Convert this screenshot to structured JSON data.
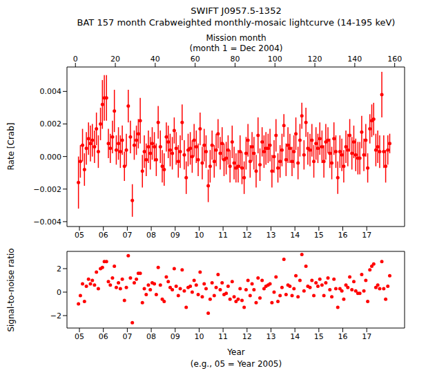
{
  "chart_data": [
    {
      "type": "scatter",
      "title": "SWIFT J0957.5-1352",
      "subtitle": "BAT 157 month Crabweighted monthly-mosaic lightcurve (14-195 keV)",
      "x2_label": "Mission month",
      "x2_sublabel": "(month 1 = Dec 2004)",
      "y_label": "Rate [Crab]",
      "color": "#ff0000",
      "marker": "o",
      "grid": false,
      "xlim": [
        2004.48,
        2018.58
      ],
      "xticks": [
        {
          "value": 2005,
          "label": "05"
        },
        {
          "value": 2006,
          "label": "06"
        },
        {
          "value": 2007,
          "label": "07"
        },
        {
          "value": 2008,
          "label": "08"
        },
        {
          "value": 2009,
          "label": "09"
        },
        {
          "value": 2010,
          "label": "10"
        },
        {
          "value": 2011,
          "label": "11"
        },
        {
          "value": 2012,
          "label": "12"
        },
        {
          "value": 2013,
          "label": "13"
        },
        {
          "value": 2014,
          "label": "14"
        },
        {
          "value": 2015,
          "label": "15"
        },
        {
          "value": 2016,
          "label": "16"
        },
        {
          "value": 2017,
          "label": "17"
        }
      ],
      "x2lim": [
        -4.24,
        164.96
      ],
      "x2ticks": [
        0,
        20,
        40,
        60,
        80,
        100,
        120,
        140,
        160
      ],
      "ylim": [
        -0.0043,
        0.0055
      ],
      "yticks": [
        {
          "value": -0.004,
          "label": "−0.004"
        },
        {
          "value": -0.002,
          "label": "−0.002"
        },
        {
          "value": 0,
          "label": "0.000"
        },
        {
          "value": 0.002,
          "label": "0.002"
        },
        {
          "value": 0.004,
          "label": "0.004"
        }
      ],
      "x": [
        2004.96,
        2005.04,
        2005.13,
        2005.21,
        2005.29,
        2005.38,
        2005.46,
        2005.54,
        2005.63,
        2005.71,
        2005.79,
        2005.88,
        2005.96,
        2006.04,
        2006.13,
        2006.21,
        2006.29,
        2006.38,
        2006.46,
        2006.54,
        2006.63,
        2006.71,
        2006.79,
        2006.88,
        2006.96,
        2007.04,
        2007.13,
        2007.21,
        2007.29,
        2007.38,
        2007.46,
        2007.54,
        2007.63,
        2007.71,
        2007.79,
        2007.88,
        2007.96,
        2008.04,
        2008.13,
        2008.21,
        2008.29,
        2008.38,
        2008.46,
        2008.54,
        2008.63,
        2008.71,
        2008.79,
        2008.88,
        2008.96,
        2009.04,
        2009.13,
        2009.21,
        2009.29,
        2009.38,
        2009.46,
        2009.54,
        2009.63,
        2009.71,
        2009.79,
        2009.88,
        2009.96,
        2010.04,
        2010.13,
        2010.21,
        2010.29,
        2010.38,
        2010.46,
        2010.54,
        2010.63,
        2010.71,
        2010.79,
        2010.88,
        2010.96,
        2011.04,
        2011.13,
        2011.21,
        2011.29,
        2011.38,
        2011.46,
        2011.54,
        2011.63,
        2011.71,
        2011.79,
        2011.88,
        2011.96,
        2012.04,
        2012.13,
        2012.21,
        2012.29,
        2012.38,
        2012.46,
        2012.54,
        2012.63,
        2012.71,
        2012.79,
        2012.88,
        2012.96,
        2013.04,
        2013.13,
        2013.21,
        2013.29,
        2013.38,
        2013.46,
        2013.54,
        2013.63,
        2013.71,
        2013.79,
        2013.88,
        2013.96,
        2014.04,
        2014.13,
        2014.21,
        2014.29,
        2014.38,
        2014.46,
        2014.54,
        2014.63,
        2014.71,
        2014.79,
        2014.88,
        2014.96,
        2015.04,
        2015.13,
        2015.21,
        2015.29,
        2015.38,
        2015.46,
        2015.54,
        2015.63,
        2015.71,
        2015.79,
        2015.88,
        2015.96,
        2016.04,
        2016.13,
        2016.21,
        2016.29,
        2016.38,
        2016.46,
        2016.54,
        2016.63,
        2016.71,
        2016.79,
        2016.88,
        2016.96,
        2017.04,
        2017.13,
        2017.21,
        2017.29,
        2017.38,
        2017.46,
        2017.54,
        2017.63,
        2017.71,
        2017.79,
        2017.88,
        2017.96
      ],
      "values": [
        -0.0016,
        -0.0003,
        0.0007,
        -0.0008,
        0.0005,
        0.0011,
        0.0008,
        0.001,
        0.0006,
        0.0017,
        0.0003,
        0.002,
        0.0032,
        0.0036,
        0.0036,
        0.0008,
        0.0005,
        0.0012,
        0.0028,
        0.0004,
        0.0008,
        0.0003,
        0.001,
        -0.0006,
        0.0004,
        0.0031,
        0.0012,
        -0.0027,
        0.0007,
        0.001,
        0.0014,
        0.0022,
        -0.0009,
        0.0003,
        -0.0002,
        0.0006,
        0.0002,
        0.0008,
        0.0006,
        -0.0002,
        0.0021,
        0.0006,
        -0.0006,
        -0.0008,
        0.0012,
        0.0009,
        0.0004,
        0.0002,
        0.0016,
        0.0005,
        -0.0003,
        0.0003,
        0.0021,
        0.0001,
        -0.0013,
        0.0004,
        0.0005,
        0,
        0.001,
        0.0006,
        -0.0002,
        0.0017,
        -0.0004,
        0.0007,
        0.0003,
        -0.0018,
        -0.0006,
        0.0007,
        -0.0003,
        0.0004,
        0.0014,
        0.0002,
        0.0008,
        -0.0002,
        -0.0001,
        0.0004,
        -0.0006,
        0.0009,
        -0.0004,
        -0.0007,
        -0.0006,
        0.0003,
        -0.0007,
        -0.0013,
        0.0002,
        0.001,
        -0.0003,
        0.0006,
        0.0002,
        -0.0009,
        0.0013,
        -0.0005,
        0.0009,
        0.0003,
        0.0005,
        0.0005,
        0.0007,
        -0.0009,
        0,
        0.0013,
        -0.0007,
        -0.0003,
        0.0004,
        0.0019,
        -0.0002,
        0.0007,
        0.0005,
        -0.0003,
        0.0003,
        0.0014,
        -0.0004,
        0.001,
        0.0025,
        0.0001,
        0.0021,
        0.0005,
        0.0004,
        0.001,
        -0.0003,
        0.0008,
        0.0005,
        0.0011,
        0.0006,
        -0.0003,
        0.0009,
        0.001,
        0.0002,
        -0.0004,
        0.0011,
        0.0003,
        -0.0013,
        0.0003,
        0.0001,
        -0.0006,
        0.0006,
        0.0004,
        0.0013,
        0.0002,
        0.0009,
        0.0001,
        -0.0001,
        -0.0001,
        0.0015,
        0.0001,
        0.001,
        -0.0007,
        0.0017,
        0.0022,
        0.0023,
        0.0004,
        0.0006,
        0.0003,
        0.0038,
        0.0003,
        -0.0006,
        0.0004,
        0.0008
      ],
      "errors": [
        0.0016,
        0.001,
        0.001,
        0.001,
        0.001,
        0.001,
        0.0011,
        0.001,
        0.001,
        0.001,
        0.001,
        0.001,
        0.0015,
        0.0014,
        0.0014,
        0.0009,
        0.0009,
        0.001,
        0.0013,
        0.0009,
        0.001,
        0.001,
        0.0009,
        0.0009,
        0.001,
        0.001,
        0.001,
        0.001,
        0.0009,
        0.0009,
        0.0009,
        0.0014,
        0.001,
        0.001,
        0.001,
        0.001,
        0.001,
        0.001,
        0.0009,
        0.001,
        0.001,
        0.001,
        0.001,
        0.001,
        0.0009,
        0.001,
        0.001,
        0.001,
        0.0008,
        0.001,
        0.001,
        0.001,
        0.0011,
        0.0009,
        0.001,
        0.001,
        0.001,
        0.001,
        0.001,
        0.001,
        0.001,
        0.001,
        0.001,
        0.001,
        0.001,
        0.001,
        0.001,
        0.0009,
        0.001,
        0.001,
        0.0009,
        0.001,
        0.001,
        0.001,
        0.001,
        0.0009,
        0.001,
        0.001,
        0.001,
        0.0009,
        0.001,
        0.001,
        0.001,
        0.001,
        0.001,
        0.001,
        0.001,
        0.0009,
        0.001,
        0.001,
        0.0011,
        0.001,
        0.0009,
        0.001,
        0.001,
        0.0009,
        0.001,
        0.001,
        0.001,
        0.001,
        0.0009,
        0.001,
        0.001,
        0.0007,
        0.001,
        0.0011,
        0.0009,
        0.0009,
        0.001,
        0.001,
        0.001,
        0.001,
        0.0008,
        0.0009,
        0.0009,
        0.001,
        0.001,
        0.001,
        0.001,
        0.001,
        0.0009,
        0.001,
        0.001,
        0.001,
        0.0011,
        0.0008,
        0.0009,
        0.001,
        0.001,
        0.001,
        0.001,
        0.001,
        0.001,
        0.001,
        0.001,
        0.001,
        0.001,
        0.001,
        0.001,
        0.001,
        0.001,
        0.001,
        0.001,
        0.001,
        0.001,
        0.0009,
        0.0009,
        0.001,
        0.001,
        0.001,
        0.001,
        0.001,
        0.0014,
        0.001,
        0.001,
        0.0009,
        0.0006
      ]
    },
    {
      "type": "scatter",
      "y_label": "Signal-to-noise ratio",
      "x_label": "Year",
      "x_sublabel": "(e.g., 05 = Year 2005)",
      "color": "#ff0000",
      "marker": "o",
      "grid": false,
      "xlim": [
        2004.48,
        2018.58
      ],
      "xticks": [
        {
          "value": 2005,
          "label": "05"
        },
        {
          "value": 2006,
          "label": "06"
        },
        {
          "value": 2007,
          "label": "07"
        },
        {
          "value": 2008,
          "label": "08"
        },
        {
          "value": 2009,
          "label": "09"
        },
        {
          "value": 2010,
          "label": "10"
        },
        {
          "value": 2011,
          "label": "11"
        },
        {
          "value": 2012,
          "label": "12"
        },
        {
          "value": 2013,
          "label": "13"
        },
        {
          "value": 2014,
          "label": "14"
        },
        {
          "value": 2015,
          "label": "15"
        },
        {
          "value": 2016,
          "label": "16"
        },
        {
          "value": 2017,
          "label": "17"
        }
      ],
      "ylim": [
        -3.06,
        3.47
      ],
      "yticks": [
        {
          "value": -2,
          "label": "−2"
        },
        0,
        2
      ],
      "x": [
        2004.96,
        2005.04,
        2005.13,
        2005.21,
        2005.29,
        2005.38,
        2005.46,
        2005.54,
        2005.63,
        2005.71,
        2005.79,
        2005.88,
        2005.96,
        2006.04,
        2006.13,
        2006.21,
        2006.29,
        2006.38,
        2006.46,
        2006.54,
        2006.63,
        2006.71,
        2006.79,
        2006.88,
        2006.96,
        2007.04,
        2007.13,
        2007.21,
        2007.29,
        2007.38,
        2007.46,
        2007.54,
        2007.63,
        2007.71,
        2007.79,
        2007.88,
        2007.96,
        2008.04,
        2008.13,
        2008.21,
        2008.29,
        2008.38,
        2008.46,
        2008.54,
        2008.63,
        2008.71,
        2008.79,
        2008.88,
        2008.96,
        2009.04,
        2009.13,
        2009.21,
        2009.29,
        2009.38,
        2009.46,
        2009.54,
        2009.63,
        2009.71,
        2009.79,
        2009.88,
        2009.96,
        2010.04,
        2010.13,
        2010.21,
        2010.29,
        2010.38,
        2010.46,
        2010.54,
        2010.63,
        2010.71,
        2010.79,
        2010.88,
        2010.96,
        2011.04,
        2011.13,
        2011.21,
        2011.29,
        2011.38,
        2011.46,
        2011.54,
        2011.63,
        2011.71,
        2011.79,
        2011.88,
        2011.96,
        2012.04,
        2012.13,
        2012.21,
        2012.29,
        2012.38,
        2012.46,
        2012.54,
        2012.63,
        2012.71,
        2012.79,
        2012.88,
        2012.96,
        2013.04,
        2013.13,
        2013.21,
        2013.29,
        2013.38,
        2013.46,
        2013.54,
        2013.63,
        2013.71,
        2013.79,
        2013.88,
        2013.96,
        2014.04,
        2014.13,
        2014.21,
        2014.29,
        2014.38,
        2014.46,
        2014.54,
        2014.63,
        2014.71,
        2014.79,
        2014.88,
        2014.96,
        2015.04,
        2015.13,
        2015.21,
        2015.29,
        2015.38,
        2015.46,
        2015.54,
        2015.63,
        2015.71,
        2015.79,
        2015.88,
        2015.96,
        2016.04,
        2016.13,
        2016.21,
        2016.29,
        2016.38,
        2016.46,
        2016.54,
        2016.63,
        2016.71,
        2016.79,
        2016.88,
        2016.96,
        2017.04,
        2017.13,
        2017.21,
        2017.29,
        2017.38,
        2017.46,
        2017.54,
        2017.63,
        2017.71,
        2017.79,
        2017.88,
        2017.96
      ],
      "values": [
        -1.0,
        -0.3,
        0.7,
        -0.8,
        0.5,
        1.1,
        0.7,
        1.0,
        0.6,
        1.7,
        0.3,
        2.0,
        2.1,
        2.6,
        2.6,
        0.9,
        0.6,
        1.2,
        2.2,
        0.4,
        0.8,
        0.3,
        1.1,
        -0.7,
        0.4,
        3.1,
        1.2,
        -2.6,
        0.8,
        1.1,
        1.6,
        1.6,
        -0.9,
        0.3,
        -0.2,
        0.6,
        0.2,
        0.8,
        0.7,
        -0.2,
        2.1,
        0.6,
        -0.6,
        -0.8,
        1.3,
        0.9,
        0.4,
        0.2,
        2.0,
        0.5,
        -0.3,
        0.3,
        1.9,
        0.1,
        -1.3,
        0.4,
        0.5,
        0.0,
        1.0,
        0.6,
        -0.2,
        1.7,
        -0.4,
        0.7,
        0.3,
        -1.8,
        -0.6,
        0.8,
        -0.3,
        0.4,
        1.5,
        0.2,
        0.8,
        -0.2,
        -0.1,
        0.5,
        -0.6,
        0.9,
        -0.4,
        -0.8,
        -0.6,
        0.3,
        -0.7,
        -1.3,
        0.2,
        1.0,
        -0.3,
        0.7,
        0.2,
        -0.9,
        1.2,
        -0.5,
        1.0,
        0.3,
        0.5,
        0.6,
        0.7,
        -0.9,
        0.0,
        1.3,
        -0.8,
        -0.3,
        0.4,
        2.8,
        -0.2,
        0.6,
        0.5,
        -0.3,
        0.3,
        1.4,
        -0.4,
        1.0,
        3.2,
        0.1,
        2.2,
        0.5,
        0.4,
        1.0,
        -0.3,
        0.8,
        0.5,
        1.1,
        0.6,
        -0.3,
        0.8,
        1.2,
        0.2,
        -0.4,
        1.1,
        0.3,
        -1.3,
        0.3,
        0.1,
        -0.6,
        0.6,
        0.4,
        1.3,
        0.2,
        0.9,
        0.1,
        -0.1,
        -0.1,
        1.5,
        0.1,
        1.0,
        -0.8,
        1.9,
        2.2,
        2.4,
        0.4,
        0.6,
        0.3,
        2.6,
        0.3,
        -0.6,
        0.5,
        1.4
      ]
    }
  ]
}
